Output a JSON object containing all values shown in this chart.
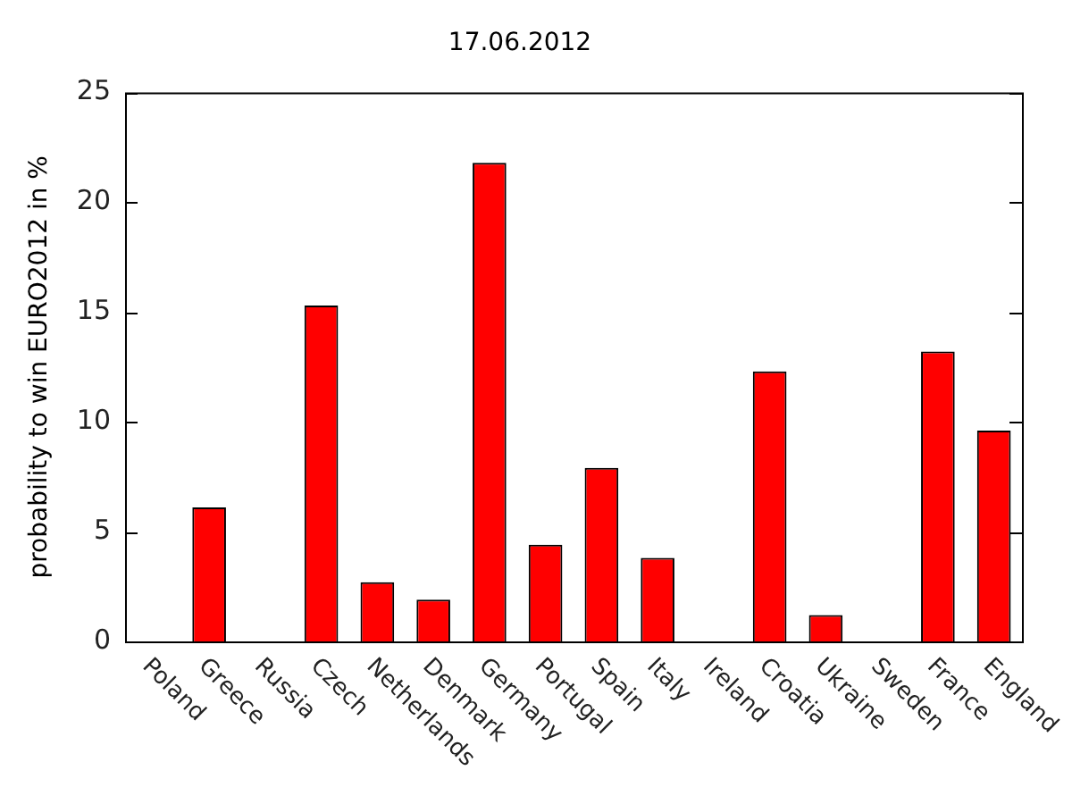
{
  "chart_data": {
    "type": "bar",
    "title": "17.06.2012",
    "ylabel": "probability to win EURO2012 in %",
    "categories": [
      "Poland",
      "Greece",
      "Russia",
      "Czech",
      "Netherlands",
      "Denmark",
      "Germany",
      "Portugal",
      "Spain",
      "Italy",
      "Ireland",
      "Croatia",
      "Ukraine",
      "Sweden",
      "France",
      "England"
    ],
    "values": [
      0,
      6.1,
      0,
      15.3,
      2.7,
      1.9,
      21.8,
      4.4,
      7.9,
      3.8,
      0,
      12.3,
      1.2,
      0,
      13.2,
      9.6
    ],
    "color": "#ff0000",
    "ylim": [
      0,
      25
    ],
    "yticks": [
      0,
      5,
      10,
      15,
      20,
      25
    ],
    "grid": false,
    "legend": false
  }
}
